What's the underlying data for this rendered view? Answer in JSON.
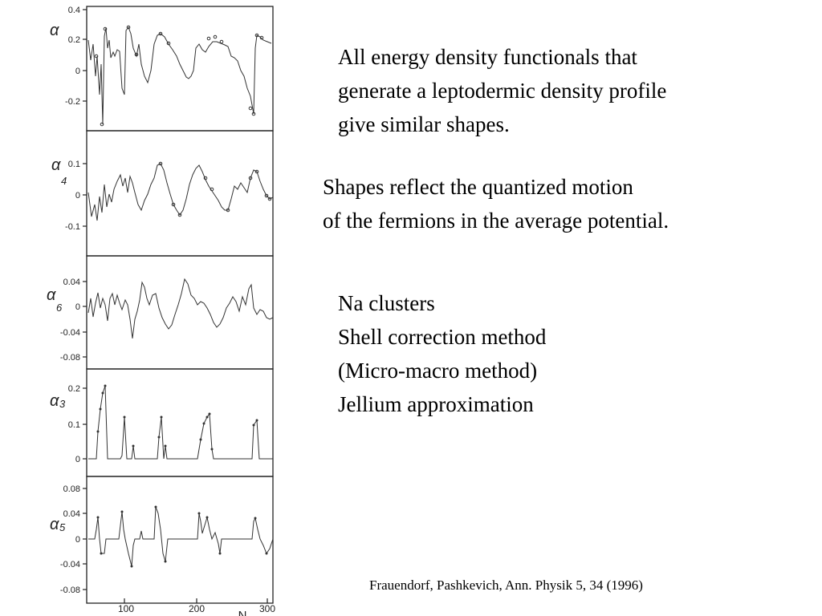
{
  "figure": {
    "x_axis": {
      "label": "N",
      "ticks": [
        "100",
        "200",
        "300"
      ]
    },
    "panels": [
      {
        "id": "alpha",
        "symbol": "α",
        "sub": "",
        "ticks": [
          "0.4",
          "0.2",
          "0",
          "-0.2"
        ]
      },
      {
        "id": "alpha4",
        "symbol": "α",
        "sub": "4",
        "ticks": [
          "0.1",
          "0",
          "-0.1"
        ]
      },
      {
        "id": "alpha6",
        "symbol": "α",
        "sub": "6",
        "ticks": [
          "0.04",
          "0",
          "-0.04",
          "-0.08"
        ]
      },
      {
        "id": "alpha3",
        "symbol": "α",
        "sub": "3",
        "ticks": [
          "0.2",
          "0.1",
          "0"
        ]
      },
      {
        "id": "alpha5",
        "symbol": "α",
        "sub": "5",
        "ticks": [
          "0.08",
          "0.04",
          "0",
          "-0.04",
          "-0.08"
        ]
      }
    ]
  },
  "text": {
    "p1": [
      "All energy density functionals that",
      "generate a leptodermic density profile",
      "give similar shapes."
    ],
    "p2": [
      "Shapes reflect the quantized motion",
      "of the fermions in the average potential."
    ],
    "p3": [
      "Na clusters",
      "Shell correction method",
      "(Micro-macro method)",
      "Jellium approximation"
    ],
    "citation": "Frauendorf, Pashkevich, Ann. Physik 5, 34 (1996)"
  }
}
